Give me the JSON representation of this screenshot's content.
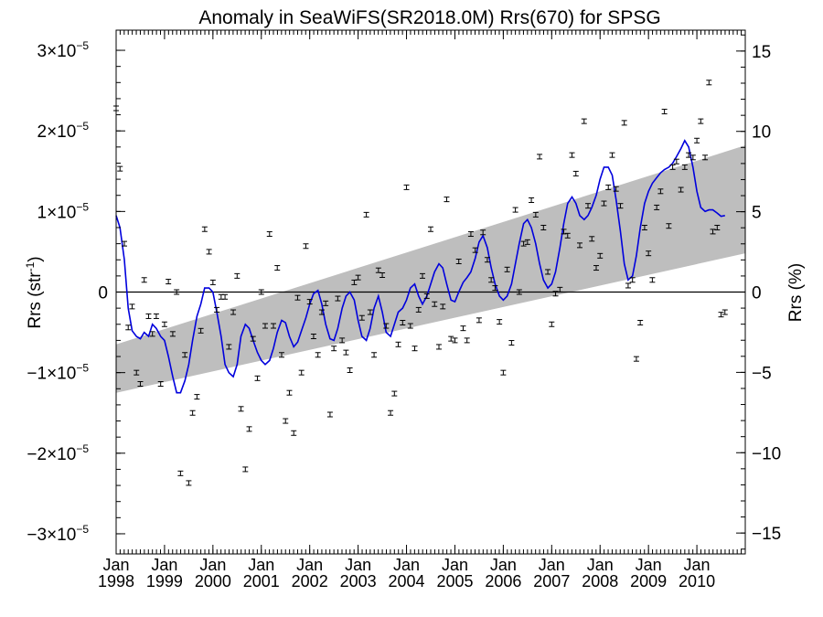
{
  "chart_data": {
    "type": "scatter",
    "title": "Anomaly in SeaWiFS(SR2018.0M) Rrs(670) for SPSG",
    "ylabel_left": "Rrs (str",
    "ylabel_left_sup": "-1",
    "ylabel_left_close": ")",
    "ylabel_right": "Rrs (%)",
    "x_range": [
      "1998-01",
      "2010-12"
    ],
    "y_left_range": [
      -3.25e-05,
      3.25e-05
    ],
    "y_right_range": [
      -16.3,
      16.3
    ],
    "left_ticks": [
      {
        "value": 3e-05,
        "label": "3×10",
        "exp": "−5"
      },
      {
        "value": 2e-05,
        "label": "2×10",
        "exp": "−5"
      },
      {
        "value": 1e-05,
        "label": "1×10",
        "exp": "−5"
      },
      {
        "value": 0,
        "label": "0",
        "exp": ""
      },
      {
        "value": -1e-05,
        "label": "−1×10",
        "exp": "−5"
      },
      {
        "value": -2e-05,
        "label": "−2×10",
        "exp": "−5"
      },
      {
        "value": -3e-05,
        "label": "−3×10",
        "exp": "−5"
      }
    ],
    "right_ticks": [
      {
        "value": 15,
        "label": "15"
      },
      {
        "value": 10,
        "label": "10"
      },
      {
        "value": 5,
        "label": "5"
      },
      {
        "value": 0,
        "label": "0"
      },
      {
        "value": -5,
        "label": "−5"
      },
      {
        "value": -10,
        "label": "−10"
      },
      {
        "value": -15,
        "label": "−15"
      }
    ],
    "x_ticks": [
      {
        "year": 1998,
        "month": "Jan",
        "label": "1998"
      },
      {
        "year": 1999,
        "month": "Jan",
        "label": "1999"
      },
      {
        "year": 2000,
        "month": "Jan",
        "label": "2000"
      },
      {
        "year": 2001,
        "month": "Jan",
        "label": "2001"
      },
      {
        "year": 2002,
        "month": "Jan",
        "label": "2002"
      },
      {
        "year": 2003,
        "month": "Jan",
        "label": "2003"
      },
      {
        "year": 2004,
        "month": "Jan",
        "label": "2004"
      },
      {
        "year": 2005,
        "month": "Jan",
        "label": "2005"
      },
      {
        "year": 2006,
        "month": "Jan",
        "label": "2006"
      },
      {
        "year": 2007,
        "month": "Jan",
        "label": "2007"
      },
      {
        "year": 2008,
        "month": "Jan",
        "label": "2008"
      },
      {
        "year": 2009,
        "month": "Jan",
        "label": "2009"
      },
      {
        "year": 2010,
        "month": "Jan",
        "label": "2010"
      }
    ],
    "trend_band": {
      "start": [
        -6.5e-06,
        -1.25e-05
      ],
      "end": [
        1.82e-05,
        4.8e-06
      ]
    },
    "zero_line": 0,
    "colors": {
      "smooth": "#0000dd",
      "band": "#bebebe",
      "points": "#000000"
    },
    "points": [
      [
        1998.0,
        2.28e-05
      ],
      [
        1998.08,
        1.53e-05
      ],
      [
        1998.17,
        6e-06
      ],
      [
        1998.25,
        -4.4e-06
      ],
      [
        1998.33,
        -1.8e-06
      ],
      [
        1998.42,
        -1e-05
      ],
      [
        1998.5,
        -1.14e-05
      ],
      [
        1998.58,
        1.5e-06
      ],
      [
        1998.67,
        -3e-06
      ],
      [
        1998.75,
        -5.2e-06
      ],
      [
        1998.83,
        -3e-06
      ],
      [
        1998.92,
        -1.14e-05
      ],
      [
        1999.0,
        -4e-06
      ],
      [
        1999.08,
        1.3e-06
      ],
      [
        1999.17,
        -5.2e-06
      ],
      [
        1999.25,
        0.0
      ],
      [
        1999.33,
        -2.25e-05
      ],
      [
        1999.42,
        -7.8e-06
      ],
      [
        1999.5,
        -2.37e-05
      ],
      [
        1999.58,
        -1.5e-05
      ],
      [
        1999.67,
        -1.3e-05
      ],
      [
        1999.75,
        -4.8e-06
      ],
      [
        1999.83,
        7.8e-06
      ],
      [
        1999.92,
        5e-06
      ],
      [
        2000.0,
        1.2e-06
      ],
      [
        2000.08,
        -2.2e-06
      ],
      [
        2000.17,
        -6e-07
      ],
      [
        2000.25,
        -6e-07
      ],
      [
        2000.33,
        -6.8e-06
      ],
      [
        2000.42,
        -2.5e-06
      ],
      [
        2000.5,
        2e-06
      ],
      [
        2000.58,
        -1.45e-05
      ],
      [
        2000.67,
        -2.2e-05
      ],
      [
        2000.75,
        -1.7e-05
      ],
      [
        2000.83,
        -5.8e-06
      ],
      [
        2000.92,
        -1.07e-05
      ],
      [
        2001.0,
        0.0
      ],
      [
        2001.08,
        -4.2e-06
      ],
      [
        2001.17,
        7.2e-06
      ],
      [
        2001.25,
        -4.2e-06
      ],
      [
        2001.33,
        3e-06
      ],
      [
        2001.42,
        -7.8e-06
      ],
      [
        2001.5,
        -1.6e-05
      ],
      [
        2001.58,
        -1.25e-05
      ],
      [
        2001.67,
        -1.75e-05
      ],
      [
        2001.75,
        -7e-07
      ],
      [
        2001.83,
        -1e-05
      ],
      [
        2001.92,
        5.7e-06
      ],
      [
        2002.0,
        -1.2e-06
      ],
      [
        2002.08,
        -5.5e-06
      ],
      [
        2002.17,
        -7.8e-06
      ],
      [
        2002.25,
        -2.5e-06
      ],
      [
        2002.33,
        -1.4e-06
      ],
      [
        2002.42,
        -1.52e-05
      ],
      [
        2002.5,
        -7e-06
      ],
      [
        2002.58,
        -8e-07
      ],
      [
        2002.67,
        -6e-06
      ],
      [
        2002.75,
        -7.5e-06
      ],
      [
        2002.83,
        -9.7e-06
      ],
      [
        2002.92,
        1.2e-06
      ],
      [
        2003.0,
        1.8e-06
      ],
      [
        2003.08,
        -3.2e-06
      ],
      [
        2003.17,
        9.6e-06
      ],
      [
        2003.25,
        -2.5e-06
      ],
      [
        2003.33,
        -7.8e-06
      ],
      [
        2003.42,
        2.7e-06
      ],
      [
        2003.5,
        2.1e-06
      ],
      [
        2003.58,
        -4.2e-06
      ],
      [
        2003.67,
        -1.5e-05
      ],
      [
        2003.75,
        -1.26e-05
      ],
      [
        2003.83,
        -6.5e-06
      ],
      [
        2003.92,
        -3.8e-06
      ],
      [
        2004.0,
        1.3e-05
      ],
      [
        2004.08,
        -4.2e-06
      ],
      [
        2004.17,
        -7e-06
      ],
      [
        2004.25,
        -2.2e-06
      ],
      [
        2004.33,
        2e-06
      ],
      [
        2004.42,
        -5e-07
      ],
      [
        2004.5,
        7.8e-06
      ],
      [
        2004.58,
        -1.5e-06
      ],
      [
        2004.67,
        -6.8e-06
      ],
      [
        2004.75,
        -1.8e-06
      ],
      [
        2004.83,
        1.15e-05
      ],
      [
        2004.92,
        -5.8e-06
      ],
      [
        2005.0,
        -6e-06
      ],
      [
        2005.08,
        3.8e-06
      ],
      [
        2005.17,
        -4.5e-06
      ],
      [
        2005.25,
        -6e-06
      ],
      [
        2005.33,
        7.2e-06
      ],
      [
        2005.42,
        5.2e-06
      ],
      [
        2005.5,
        -3.5e-06
      ],
      [
        2005.58,
        7.4e-06
      ],
      [
        2005.67,
        4e-06
      ],
      [
        2005.75,
        1.5e-06
      ],
      [
        2005.83,
        5e-07
      ],
      [
        2005.92,
        -3.7e-06
      ],
      [
        2006.0,
        -1e-05
      ],
      [
        2006.08,
        2.8e-06
      ],
      [
        2006.17,
        -6.3e-06
      ],
      [
        2006.25,
        1.02e-05
      ],
      [
        2006.33,
        0.0
      ],
      [
        2006.42,
        6e-06
      ],
      [
        2006.5,
        6.2e-06
      ],
      [
        2006.58,
        1.14e-05
      ],
      [
        2006.67,
        9.6e-06
      ],
      [
        2006.75,
        1.68e-05
      ],
      [
        2006.83,
        8e-06
      ],
      [
        2006.92,
        2.5e-06
      ],
      [
        2007.0,
        -4e-06
      ],
      [
        2007.08,
        -2e-07
      ],
      [
        2007.17,
        3e-07
      ],
      [
        2007.25,
        7.5e-06
      ],
      [
        2007.33,
        7e-06
      ],
      [
        2007.42,
        1.7e-05
      ],
      [
        2007.5,
        1.47e-05
      ],
      [
        2007.58,
        5.8e-06
      ],
      [
        2007.67,
        2.12e-05
      ],
      [
        2007.75,
        1.07e-05
      ],
      [
        2007.83,
        6.6e-06
      ],
      [
        2007.92,
        3e-06
      ],
      [
        2008.0,
        4.5e-06
      ],
      [
        2008.08,
        1.1e-05
      ],
      [
        2008.17,
        1.3e-05
      ],
      [
        2008.25,
        1.7e-05
      ],
      [
        2008.33,
        1.28e-05
      ],
      [
        2008.42,
        1.07e-05
      ],
      [
        2008.5,
        2.1e-05
      ],
      [
        2008.58,
        8e-07
      ],
      [
        2008.67,
        1.5e-06
      ],
      [
        2008.75,
        -8.3e-06
      ],
      [
        2008.83,
        -3.8e-06
      ],
      [
        2008.92,
        8e-06
      ],
      [
        2009.0,
        4.8e-06
      ],
      [
        2009.08,
        1.5e-06
      ],
      [
        2009.17,
        1.05e-05
      ],
      [
        2009.25,
        1.25e-05
      ],
      [
        2009.33,
        2.24e-05
      ],
      [
        2009.42,
        8.2e-06
      ],
      [
        2009.5,
        1.55e-05
      ],
      [
        2009.58,
        1.62e-05
      ],
      [
        2009.67,
        1.27e-05
      ],
      [
        2009.75,
        1.55e-05
      ],
      [
        2009.83,
        1.7e-05
      ],
      [
        2009.92,
        1.67e-05
      ],
      [
        2010.0,
        1.88e-05
      ],
      [
        2010.08,
        2.12e-05
      ],
      [
        2010.17,
        1.67e-05
      ],
      [
        2010.25,
        2.6e-05
      ],
      [
        2010.33,
        7.5e-06
      ],
      [
        2010.42,
        8e-06
      ],
      [
        2010.5,
        -2.8e-06
      ],
      [
        2010.58,
        -2.5e-06
      ]
    ],
    "smooth_line": [
      [
        1998.0,
        9.5e-06
      ],
      [
        1998.08,
        8e-06
      ],
      [
        1998.17,
        4e-06
      ],
      [
        1998.25,
        -2e-06
      ],
      [
        1998.33,
        -4.8e-06
      ],
      [
        1998.42,
        -5.5e-06
      ],
      [
        1998.5,
        -5.8e-06
      ],
      [
        1998.58,
        -5e-06
      ],
      [
        1998.67,
        -5.5e-06
      ],
      [
        1998.75,
        -4e-06
      ],
      [
        1998.83,
        -4.5e-06
      ],
      [
        1998.92,
        -5.5e-06
      ],
      [
        1999.0,
        -6e-06
      ],
      [
        1999.08,
        -8e-06
      ],
      [
        1999.17,
        -1.05e-05
      ],
      [
        1999.25,
        -1.25e-05
      ],
      [
        1999.33,
        -1.25e-05
      ],
      [
        1999.42,
        -1.1e-05
      ],
      [
        1999.5,
        -9e-06
      ],
      [
        1999.58,
        -6e-06
      ],
      [
        1999.67,
        -3e-06
      ],
      [
        1999.75,
        -1.5e-06
      ],
      [
        1999.83,
        5e-07
      ],
      [
        1999.92,
        5e-07
      ],
      [
        2000.0,
        0.0
      ],
      [
        2000.08,
        -2.5e-06
      ],
      [
        2000.17,
        -5.5e-06
      ],
      [
        2000.25,
        -9e-06
      ],
      [
        2000.33,
        -1e-05
      ],
      [
        2000.42,
        -1.05e-05
      ],
      [
        2000.5,
        -9e-06
      ],
      [
        2000.58,
        -5.5e-06
      ],
      [
        2000.67,
        -4e-06
      ],
      [
        2000.75,
        -4.5e-06
      ],
      [
        2000.83,
        -6e-06
      ],
      [
        2000.92,
        -7.5e-06
      ],
      [
        2001.0,
        -8.5e-06
      ],
      [
        2001.08,
        -9e-06
      ],
      [
        2001.17,
        -8.5e-06
      ],
      [
        2001.25,
        -7e-06
      ],
      [
        2001.33,
        -5e-06
      ],
      [
        2001.42,
        -3.5e-06
      ],
      [
        2001.5,
        -3.8e-06
      ],
      [
        2001.58,
        -5.5e-06
      ],
      [
        2001.67,
        -6.8e-06
      ],
      [
        2001.75,
        -6.2e-06
      ],
      [
        2001.83,
        -4.8e-06
      ],
      [
        2001.92,
        -3.2e-06
      ],
      [
        2002.0,
        -1.5e-06
      ],
      [
        2002.08,
        -2e-07
      ],
      [
        2002.17,
        2e-07
      ],
      [
        2002.25,
        -1.5e-06
      ],
      [
        2002.33,
        -4e-06
      ],
      [
        2002.42,
        -5.8e-06
      ],
      [
        2002.5,
        -6e-06
      ],
      [
        2002.58,
        -4.5e-06
      ],
      [
        2002.67,
        -2e-06
      ],
      [
        2002.75,
        -5e-07
      ],
      [
        2002.83,
        0.0
      ],
      [
        2002.92,
        -1e-06
      ],
      [
        2003.0,
        -3.5e-06
      ],
      [
        2003.08,
        -5.5e-06
      ],
      [
        2003.17,
        -6e-06
      ],
      [
        2003.25,
        -4.5e-06
      ],
      [
        2003.33,
        -2e-06
      ],
      [
        2003.42,
        -5e-07
      ],
      [
        2003.5,
        -2.5e-06
      ],
      [
        2003.58,
        -5e-06
      ],
      [
        2003.67,
        -5.5e-06
      ],
      [
        2003.75,
        -4e-06
      ],
      [
        2003.83,
        -2.5e-06
      ],
      [
        2003.92,
        -2e-06
      ],
      [
        2004.0,
        -1e-06
      ],
      [
        2004.08,
        5e-07
      ],
      [
        2004.17,
        1e-06
      ],
      [
        2004.25,
        -5e-07
      ],
      [
        2004.33,
        -1.5e-06
      ],
      [
        2004.42,
        -5e-07
      ],
      [
        2004.5,
        1e-06
      ],
      [
        2004.58,
        2.5e-06
      ],
      [
        2004.67,
        3.5e-06
      ],
      [
        2004.75,
        3e-06
      ],
      [
        2004.83,
        1e-06
      ],
      [
        2004.92,
        -1e-06
      ],
      [
        2005.0,
        -1.2e-06
      ],
      [
        2005.08,
        0.0
      ],
      [
        2005.17,
        1.2e-06
      ],
      [
        2005.25,
        1.8e-06
      ],
      [
        2005.33,
        2.5e-06
      ],
      [
        2005.42,
        4.2e-06
      ],
      [
        2005.5,
        6.2e-06
      ],
      [
        2005.58,
        7e-06
      ],
      [
        2005.67,
        5.5e-06
      ],
      [
        2005.75,
        3e-06
      ],
      [
        2005.83,
        1e-06
      ],
      [
        2005.92,
        -5e-07
      ],
      [
        2006.0,
        -1e-06
      ],
      [
        2006.08,
        -5e-07
      ],
      [
        2006.17,
        1e-06
      ],
      [
        2006.25,
        3.5e-06
      ],
      [
        2006.33,
        6e-06
      ],
      [
        2006.42,
        8.5e-06
      ],
      [
        2006.5,
        9e-06
      ],
      [
        2006.58,
        8e-06
      ],
      [
        2006.67,
        6e-06
      ],
      [
        2006.75,
        3.5e-06
      ],
      [
        2006.83,
        1.5e-06
      ],
      [
        2006.92,
        5e-07
      ],
      [
        2007.0,
        1e-06
      ],
      [
        2007.08,
        2.5e-06
      ],
      [
        2007.17,
        5.5e-06
      ],
      [
        2007.25,
        8.5e-06
      ],
      [
        2007.33,
        1.1e-05
      ],
      [
        2007.42,
        1.18e-05
      ],
      [
        2007.5,
        1.1e-05
      ],
      [
        2007.58,
        9.5e-06
      ],
      [
        2007.67,
        9e-06
      ],
      [
        2007.75,
        9.5e-06
      ],
      [
        2007.83,
        1.05e-05
      ],
      [
        2007.92,
        1.2e-05
      ],
      [
        2008.0,
        1.4e-05
      ],
      [
        2008.08,
        1.55e-05
      ],
      [
        2008.17,
        1.55e-05
      ],
      [
        2008.25,
        1.45e-05
      ],
      [
        2008.33,
        1.15e-05
      ],
      [
        2008.42,
        7.5e-06
      ],
      [
        2008.5,
        3.5e-06
      ],
      [
        2008.58,
        1.5e-06
      ],
      [
        2008.67,
        2e-06
      ],
      [
        2008.75,
        4.5e-06
      ],
      [
        2008.83,
        8e-06
      ],
      [
        2008.92,
        1.1e-05
      ],
      [
        2009.0,
        1.25e-05
      ],
      [
        2009.08,
        1.35e-05
      ],
      [
        2009.17,
        1.42e-05
      ],
      [
        2009.25,
        1.48e-05
      ],
      [
        2009.33,
        1.52e-05
      ],
      [
        2009.42,
        1.55e-05
      ],
      [
        2009.5,
        1.6e-05
      ],
      [
        2009.58,
        1.68e-05
      ],
      [
        2009.67,
        1.78e-05
      ],
      [
        2009.75,
        1.88e-05
      ],
      [
        2009.83,
        1.8e-05
      ],
      [
        2009.92,
        1.55e-05
      ],
      [
        2010.0,
        1.25e-05
      ],
      [
        2010.08,
        1.05e-05
      ],
      [
        2010.17,
        1e-05
      ],
      [
        2010.25,
        1.02e-05
      ],
      [
        2010.33,
        1.02e-05
      ],
      [
        2010.42,
        9.8e-06
      ],
      [
        2010.5,
        9.4e-06
      ],
      [
        2010.58,
        9.5e-06
      ]
    ]
  }
}
